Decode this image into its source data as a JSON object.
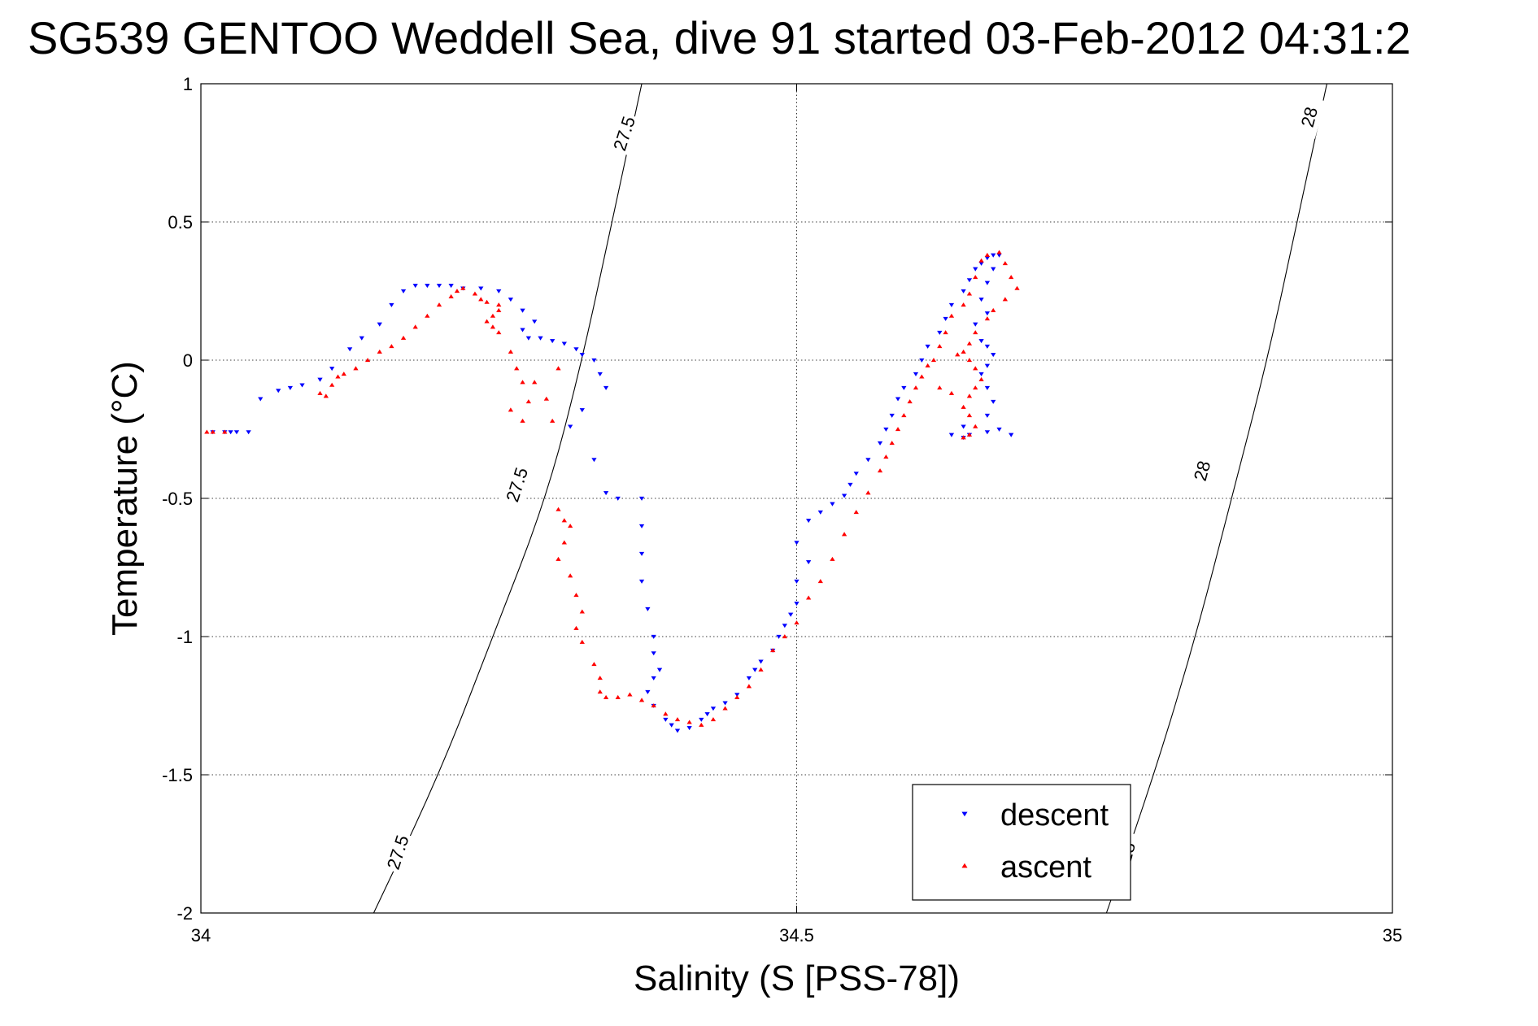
{
  "chart_data": {
    "type": "scatter",
    "title": "SG539 GENTOO Weddell Sea, dive 91 started 03-Feb-2012 04:31:2",
    "xlabel": "Salinity (S [PSS-78])",
    "ylabel": "Temperature (°C)",
    "xlim": [
      34,
      35
    ],
    "ylim": [
      -2,
      1
    ],
    "xticks": [
      34,
      34.5,
      35
    ],
    "yticks": [
      -2,
      -1.5,
      -1,
      -0.5,
      0,
      0.5,
      1
    ],
    "xtick_labels": [
      "34",
      "34.5",
      "35"
    ],
    "ytick_labels": [
      "-2",
      "-1.5",
      "-1",
      "-0.5",
      "0",
      "0.5",
      "1"
    ],
    "grid": true,
    "legend_position": "bottom-right",
    "series": [
      {
        "name": "descent",
        "color": "#0000ff",
        "marker": "triangle-down",
        "points": [
          [
            34.01,
            -0.26
          ],
          [
            34.02,
            -0.26
          ],
          [
            34.025,
            -0.26
          ],
          [
            34.03,
            -0.26
          ],
          [
            34.04,
            -0.26
          ],
          [
            34.05,
            -0.14
          ],
          [
            34.065,
            -0.11
          ],
          [
            34.075,
            -0.1
          ],
          [
            34.085,
            -0.09
          ],
          [
            34.1,
            -0.07
          ],
          [
            34.11,
            -0.03
          ],
          [
            34.125,
            0.04
          ],
          [
            34.135,
            0.08
          ],
          [
            34.15,
            0.13
          ],
          [
            34.16,
            0.2
          ],
          [
            34.17,
            0.25
          ],
          [
            34.18,
            0.27
          ],
          [
            34.19,
            0.27
          ],
          [
            34.2,
            0.27
          ],
          [
            34.21,
            0.27
          ],
          [
            34.22,
            0.26
          ],
          [
            34.235,
            0.26
          ],
          [
            34.25,
            0.25
          ],
          [
            34.26,
            0.22
          ],
          [
            34.27,
            0.18
          ],
          [
            34.28,
            0.14
          ],
          [
            34.27,
            0.11
          ],
          [
            34.275,
            0.08
          ],
          [
            34.285,
            0.08
          ],
          [
            34.295,
            0.07
          ],
          [
            34.305,
            0.06
          ],
          [
            34.315,
            0.04
          ],
          [
            34.32,
            0.02
          ],
          [
            34.33,
            0.0
          ],
          [
            34.335,
            -0.05
          ],
          [
            34.34,
            -0.1
          ],
          [
            34.32,
            -0.18
          ],
          [
            34.31,
            -0.24
          ],
          [
            34.33,
            -0.36
          ],
          [
            34.34,
            -0.48
          ],
          [
            34.35,
            -0.5
          ],
          [
            34.37,
            -0.5
          ],
          [
            34.37,
            -0.6
          ],
          [
            34.37,
            -0.7
          ],
          [
            34.37,
            -0.8
          ],
          [
            34.375,
            -0.9
          ],
          [
            34.38,
            -1.0
          ],
          [
            34.38,
            -1.06
          ],
          [
            34.385,
            -1.12
          ],
          [
            34.38,
            -1.15
          ],
          [
            34.375,
            -1.2
          ],
          [
            34.38,
            -1.25
          ],
          [
            34.39,
            -1.3
          ],
          [
            34.395,
            -1.32
          ],
          [
            34.4,
            -1.34
          ],
          [
            34.41,
            -1.33
          ],
          [
            34.42,
            -1.3
          ],
          [
            34.425,
            -1.28
          ],
          [
            34.43,
            -1.26
          ],
          [
            34.44,
            -1.24
          ],
          [
            34.45,
            -1.21
          ],
          [
            34.46,
            -1.15
          ],
          [
            34.465,
            -1.12
          ],
          [
            34.47,
            -1.09
          ],
          [
            34.48,
            -1.05
          ],
          [
            34.485,
            -1.0
          ],
          [
            34.49,
            -0.96
          ],
          [
            34.495,
            -0.92
          ],
          [
            34.5,
            -0.88
          ],
          [
            34.5,
            -0.8
          ],
          [
            34.51,
            -0.73
          ],
          [
            34.5,
            -0.66
          ],
          [
            34.51,
            -0.58
          ],
          [
            34.52,
            -0.55
          ],
          [
            34.53,
            -0.52
          ],
          [
            34.54,
            -0.49
          ],
          [
            34.545,
            -0.45
          ],
          [
            34.55,
            -0.41
          ],
          [
            34.56,
            -0.36
          ],
          [
            34.57,
            -0.3
          ],
          [
            34.575,
            -0.25
          ],
          [
            34.58,
            -0.2
          ],
          [
            34.585,
            -0.14
          ],
          [
            34.59,
            -0.1
          ],
          [
            34.6,
            -0.05
          ],
          [
            34.605,
            0.0
          ],
          [
            34.61,
            0.05
          ],
          [
            34.62,
            0.1
          ],
          [
            34.625,
            0.15
          ],
          [
            34.63,
            0.2
          ],
          [
            34.64,
            0.25
          ],
          [
            34.645,
            0.29
          ],
          [
            34.65,
            0.33
          ],
          [
            34.655,
            0.35
          ],
          [
            34.66,
            0.37
          ],
          [
            34.665,
            0.38
          ],
          [
            34.67,
            0.38
          ],
          [
            34.665,
            0.33
          ],
          [
            34.66,
            0.28
          ],
          [
            34.655,
            0.22
          ],
          [
            34.66,
            0.17
          ],
          [
            34.65,
            0.13
          ],
          [
            34.655,
            0.07
          ],
          [
            34.66,
            0.05
          ],
          [
            34.665,
            0.02
          ],
          [
            34.66,
            -0.02
          ],
          [
            34.655,
            -0.05
          ],
          [
            34.66,
            -0.1
          ],
          [
            34.665,
            -0.15
          ],
          [
            34.66,
            -0.2
          ],
          [
            34.64,
            -0.24
          ],
          [
            34.63,
            -0.27
          ],
          [
            34.64,
            -0.28
          ],
          [
            34.645,
            -0.27
          ],
          [
            34.66,
            -0.26
          ],
          [
            34.67,
            -0.25
          ],
          [
            34.68,
            -0.27
          ]
        ]
      },
      {
        "name": "ascent",
        "color": "#ff0000",
        "marker": "triangle-up",
        "points": [
          [
            34.005,
            -0.26
          ],
          [
            34.01,
            -0.26
          ],
          [
            34.02,
            -0.26
          ],
          [
            34.1,
            -0.12
          ],
          [
            34.105,
            -0.13
          ],
          [
            34.11,
            -0.09
          ],
          [
            34.115,
            -0.06
          ],
          [
            34.12,
            -0.05
          ],
          [
            34.13,
            -0.03
          ],
          [
            34.14,
            0.0
          ],
          [
            34.15,
            0.03
          ],
          [
            34.16,
            0.05
          ],
          [
            34.17,
            0.08
          ],
          [
            34.18,
            0.12
          ],
          [
            34.19,
            0.16
          ],
          [
            34.2,
            0.2
          ],
          [
            34.21,
            0.23
          ],
          [
            34.215,
            0.25
          ],
          [
            34.22,
            0.26
          ],
          [
            34.23,
            0.24
          ],
          [
            34.235,
            0.22
          ],
          [
            34.24,
            0.21
          ],
          [
            34.25,
            0.2
          ],
          [
            34.25,
            0.18
          ],
          [
            34.245,
            0.16
          ],
          [
            34.24,
            0.14
          ],
          [
            34.245,
            0.12
          ],
          [
            34.25,
            0.1
          ],
          [
            34.26,
            0.03
          ],
          [
            34.265,
            -0.03
          ],
          [
            34.27,
            -0.08
          ],
          [
            34.26,
            -0.18
          ],
          [
            34.27,
            -0.22
          ],
          [
            34.275,
            -0.15
          ],
          [
            34.28,
            -0.08
          ],
          [
            34.29,
            -0.14
          ],
          [
            34.295,
            -0.22
          ],
          [
            34.3,
            -0.03
          ],
          [
            34.3,
            -0.54
          ],
          [
            34.305,
            -0.58
          ],
          [
            34.31,
            -0.6
          ],
          [
            34.305,
            -0.66
          ],
          [
            34.3,
            -0.72
          ],
          [
            34.31,
            -0.78
          ],
          [
            34.315,
            -0.85
          ],
          [
            34.32,
            -0.91
          ],
          [
            34.315,
            -0.97
          ],
          [
            34.32,
            -1.02
          ],
          [
            34.33,
            -1.1
          ],
          [
            34.335,
            -1.15
          ],
          [
            34.335,
            -1.2
          ],
          [
            34.34,
            -1.22
          ],
          [
            34.35,
            -1.22
          ],
          [
            34.36,
            -1.21
          ],
          [
            34.37,
            -1.23
          ],
          [
            34.38,
            -1.25
          ],
          [
            34.39,
            -1.28
          ],
          [
            34.4,
            -1.3
          ],
          [
            34.41,
            -1.31
          ],
          [
            34.42,
            -1.32
          ],
          [
            34.43,
            -1.3
          ],
          [
            34.44,
            -1.26
          ],
          [
            34.45,
            -1.22
          ],
          [
            34.46,
            -1.18
          ],
          [
            34.47,
            -1.12
          ],
          [
            34.48,
            -1.05
          ],
          [
            34.49,
            -1.0
          ],
          [
            34.5,
            -0.95
          ],
          [
            34.51,
            -0.86
          ],
          [
            34.52,
            -0.8
          ],
          [
            34.53,
            -0.72
          ],
          [
            34.54,
            -0.63
          ],
          [
            34.55,
            -0.55
          ],
          [
            34.56,
            -0.48
          ],
          [
            34.57,
            -0.4
          ],
          [
            34.575,
            -0.35
          ],
          [
            34.58,
            -0.3
          ],
          [
            34.585,
            -0.25
          ],
          [
            34.59,
            -0.2
          ],
          [
            34.595,
            -0.15
          ],
          [
            34.6,
            -0.1
          ],
          [
            34.605,
            -0.06
          ],
          [
            34.61,
            -0.02
          ],
          [
            34.615,
            0.0
          ],
          [
            34.62,
            0.05
          ],
          [
            34.625,
            0.1
          ],
          [
            34.63,
            0.16
          ],
          [
            34.64,
            0.2
          ],
          [
            34.645,
            0.24
          ],
          [
            34.65,
            0.3
          ],
          [
            34.655,
            0.36
          ],
          [
            34.66,
            0.38
          ],
          [
            34.67,
            0.39
          ],
          [
            34.675,
            0.35
          ],
          [
            34.68,
            0.3
          ],
          [
            34.685,
            0.26
          ],
          [
            34.675,
            0.22
          ],
          [
            34.665,
            0.18
          ],
          [
            34.66,
            0.15
          ],
          [
            34.65,
            0.1
          ],
          [
            34.645,
            0.06
          ],
          [
            34.64,
            0.03
          ],
          [
            34.645,
            0.0
          ],
          [
            34.65,
            -0.03
          ],
          [
            34.655,
            -0.07
          ],
          [
            34.65,
            -0.1
          ],
          [
            34.645,
            -0.13
          ],
          [
            34.64,
            -0.17
          ],
          [
            34.645,
            -0.2
          ],
          [
            34.65,
            -0.24
          ],
          [
            34.645,
            -0.27
          ],
          [
            34.64,
            -0.28
          ],
          [
            34.63,
            -0.12
          ],
          [
            34.62,
            -0.1
          ],
          [
            34.635,
            0.02
          ]
        ]
      }
    ],
    "contours": [
      {
        "label": "27.5",
        "points": [
          [
            34.145,
            -2.0
          ],
          [
            34.2,
            -1.5
          ],
          [
            34.245,
            -1.0
          ],
          [
            34.29,
            -0.5
          ],
          [
            34.32,
            0.0
          ],
          [
            34.345,
            0.5
          ],
          [
            34.37,
            1.0
          ]
        ],
        "label_positions": [
          [
            34.165,
            -1.78
          ],
          [
            34.265,
            -0.45
          ],
          [
            34.355,
            0.82
          ]
        ]
      },
      {
        "label": "28",
        "points": [
          [
            34.76,
            -2.0
          ],
          [
            34.8,
            -1.5
          ],
          [
            34.835,
            -1.0
          ],
          [
            34.865,
            -0.5
          ],
          [
            34.895,
            0.0
          ],
          [
            34.92,
            0.5
          ],
          [
            34.945,
            1.0
          ]
        ],
        "label_positions": [
          [
            34.777,
            -1.78
          ],
          [
            34.84,
            -0.4
          ],
          [
            34.93,
            0.88
          ]
        ]
      }
    ]
  }
}
